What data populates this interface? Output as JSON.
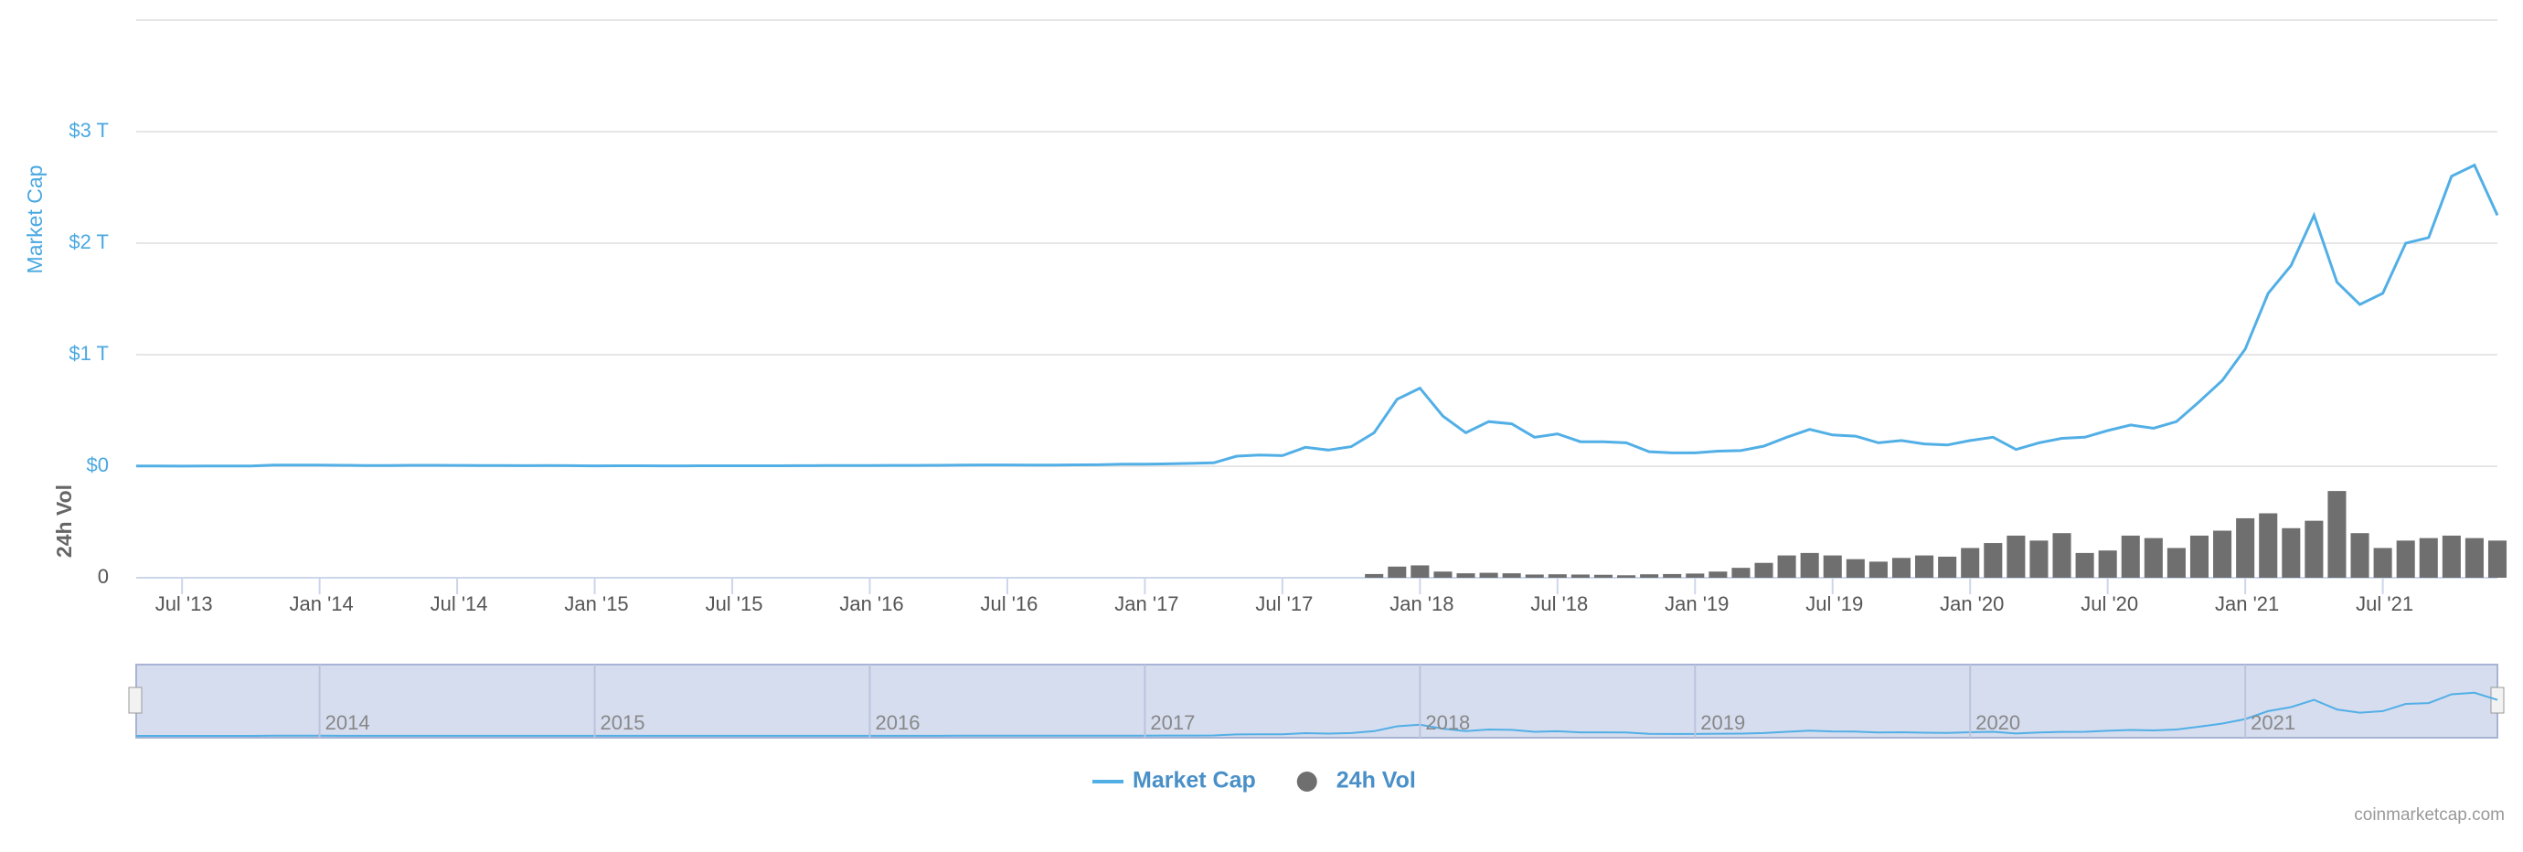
{
  "chart_data": {
    "type": "line",
    "ylabel": "Market Cap",
    "y2label": "24h Vol",
    "x": [
      "2013-05",
      "2013-06",
      "2013-07",
      "2013-08",
      "2013-09",
      "2013-10",
      "2013-11",
      "2013-12",
      "2014-01",
      "2014-02",
      "2014-03",
      "2014-04",
      "2014-05",
      "2014-06",
      "2014-07",
      "2014-08",
      "2014-09",
      "2014-10",
      "2014-11",
      "2014-12",
      "2015-01",
      "2015-02",
      "2015-03",
      "2015-04",
      "2015-05",
      "2015-06",
      "2015-07",
      "2015-08",
      "2015-09",
      "2015-10",
      "2015-11",
      "2015-12",
      "2016-01",
      "2016-02",
      "2016-03",
      "2016-04",
      "2016-05",
      "2016-06",
      "2016-07",
      "2016-08",
      "2016-09",
      "2016-10",
      "2016-11",
      "2016-12",
      "2017-01",
      "2017-02",
      "2017-03",
      "2017-04",
      "2017-05",
      "2017-06",
      "2017-07",
      "2017-08",
      "2017-09",
      "2017-10",
      "2017-11",
      "2017-12",
      "2018-01",
      "2018-02",
      "2018-03",
      "2018-04",
      "2018-05",
      "2018-06",
      "2018-07",
      "2018-08",
      "2018-09",
      "2018-10",
      "2018-11",
      "2018-12",
      "2019-01",
      "2019-02",
      "2019-03",
      "2019-04",
      "2019-05",
      "2019-06",
      "2019-07",
      "2019-08",
      "2019-09",
      "2019-10",
      "2019-11",
      "2019-12",
      "2020-01",
      "2020-02",
      "2020-03",
      "2020-04",
      "2020-05",
      "2020-06",
      "2020-07",
      "2020-08",
      "2020-09",
      "2020-10",
      "2020-11",
      "2020-12",
      "2021-01",
      "2021-02",
      "2021-03",
      "2021-04",
      "2021-05",
      "2021-06",
      "2021-07",
      "2021-08",
      "2021-09",
      "2021-10",
      "2021-11",
      "2021-12"
    ],
    "series": [
      {
        "name": "Market Cap",
        "color": "#52afe6",
        "axis": "y",
        "values": [
          1500000000,
          1300000000,
          1100000000,
          1400000000,
          1600000000,
          2500000000,
          11000000000,
          10000000000,
          10000000000,
          8000000000,
          6500000000,
          6000000000,
          8000000000,
          8500000000,
          7500000000,
          6500000000,
          5500000000,
          5300000000,
          5600000000,
          4800000000,
          3600000000,
          4000000000,
          3900000000,
          3600000000,
          3600000000,
          3800000000,
          4500000000,
          3800000000,
          3700000000,
          4600000000,
          5500000000,
          6800000000,
          6500000000,
          7500000000,
          7500000000,
          8400000000,
          9500000000,
          11500000000,
          11200000000,
          10500000000,
          11000000000,
          12000000000,
          13000000000,
          17700000000,
          17900000000,
          21000000000,
          25000000000,
          30000000000,
          90000000000,
          100000000000,
          95000000000,
          170000000000,
          145000000000,
          175000000000,
          300000000000,
          600000000000,
          700000000000,
          450000000000,
          300000000000,
          400000000000,
          380000000000,
          260000000000,
          290000000000,
          220000000000,
          220000000000,
          210000000000,
          130000000000,
          120000000000,
          120000000000,
          135000000000,
          140000000000,
          180000000000,
          260000000000,
          330000000000,
          280000000000,
          270000000000,
          210000000000,
          230000000000,
          200000000000,
          190000000000,
          230000000000,
          260000000000,
          150000000000,
          210000000000,
          250000000000,
          260000000000,
          320000000000,
          370000000000,
          340000000000,
          400000000000,
          580000000000,
          770000000000,
          1050000000000,
          1550000000000,
          1800000000000,
          2250000000000,
          1650000000000,
          1450000000000,
          1550000000000,
          2000000000000,
          2050000000000,
          2600000000000,
          2700000000000,
          2250000000000
        ]
      },
      {
        "name": "24h Vol",
        "color": "#6f6f6f",
        "axis": "y2",
        "values": [
          null,
          null,
          null,
          null,
          null,
          null,
          null,
          null,
          null,
          null,
          null,
          null,
          null,
          null,
          null,
          null,
          null,
          null,
          null,
          null,
          null,
          null,
          null,
          null,
          null,
          null,
          null,
          null,
          null,
          null,
          null,
          null,
          null,
          null,
          null,
          null,
          null,
          null,
          null,
          null,
          null,
          null,
          null,
          null,
          null,
          null,
          null,
          null,
          null,
          null,
          null,
          null,
          null,
          null,
          15000000000,
          45000000000,
          50000000000,
          25000000000,
          18000000000,
          20000000000,
          18000000000,
          13000000000,
          14000000000,
          13000000000,
          12000000000,
          10000000000,
          14000000000,
          15000000000,
          17000000000,
          25000000000,
          40000000000,
          60000000000,
          90000000000,
          100000000000,
          90000000000,
          75000000000,
          65000000000,
          80000000000,
          90000000000,
          85000000000,
          120000000000,
          140000000000,
          170000000000,
          150000000000,
          180000000000,
          100000000000,
          110000000000,
          170000000000,
          160000000000,
          120000000000,
          170000000000,
          190000000000,
          240000000000,
          260000000000,
          200000000000,
          230000000000,
          350000000000,
          180000000000,
          120000000000,
          150000000000,
          160000000000,
          170000000000,
          160000000000,
          150000000000
        ]
      }
    ],
    "xlim": [
      "2013-05",
      "2021-12"
    ],
    "xticks": [
      {
        "value": "2013-07",
        "label": "Jul '13"
      },
      {
        "value": "2014-01",
        "label": "Jan '14"
      },
      {
        "value": "2014-07",
        "label": "Jul '14"
      },
      {
        "value": "2015-01",
        "label": "Jan '15"
      },
      {
        "value": "2015-07",
        "label": "Jul '15"
      },
      {
        "value": "2016-01",
        "label": "Jan '16"
      },
      {
        "value": "2016-07",
        "label": "Jul '16"
      },
      {
        "value": "2017-01",
        "label": "Jan '17"
      },
      {
        "value": "2017-07",
        "label": "Jul '17"
      },
      {
        "value": "2018-01",
        "label": "Jan '18"
      },
      {
        "value": "2018-07",
        "label": "Jul '18"
      },
      {
        "value": "2019-01",
        "label": "Jan '19"
      },
      {
        "value": "2019-07",
        "label": "Jul '19"
      },
      {
        "value": "2020-01",
        "label": "Jan '20"
      },
      {
        "value": "2020-07",
        "label": "Jul '20"
      },
      {
        "value": "2021-01",
        "label": "Jan '21"
      },
      {
        "value": "2021-07",
        "label": "Jul '21"
      }
    ],
    "ylim": [
      0,
      4000000000000
    ],
    "yticks": [
      {
        "value": 0,
        "label": "$0"
      },
      {
        "value": 1000000000000,
        "label": "$1 T"
      },
      {
        "value": 2000000000000,
        "label": "$2 T"
      },
      {
        "value": 3000000000000,
        "label": "$3 T"
      }
    ],
    "y2lim": [
      0,
      450000000000
    ],
    "y2ticks": [
      0
    ],
    "navigator_ticks": [
      {
        "value": "2014-01",
        "label": "2014"
      },
      {
        "value": "2015-01",
        "label": "2015"
      },
      {
        "value": "2016-01",
        "label": "2016"
      },
      {
        "value": "2017-01",
        "label": "2017"
      },
      {
        "value": "2018-01",
        "label": "2018"
      },
      {
        "value": "2019-01",
        "label": "2019"
      },
      {
        "value": "2020-01",
        "label": "2020"
      },
      {
        "value": "2021-01",
        "label": "2021"
      }
    ],
    "grid": true,
    "legend": "bottom",
    "credit": "coinmarketcap.com"
  }
}
